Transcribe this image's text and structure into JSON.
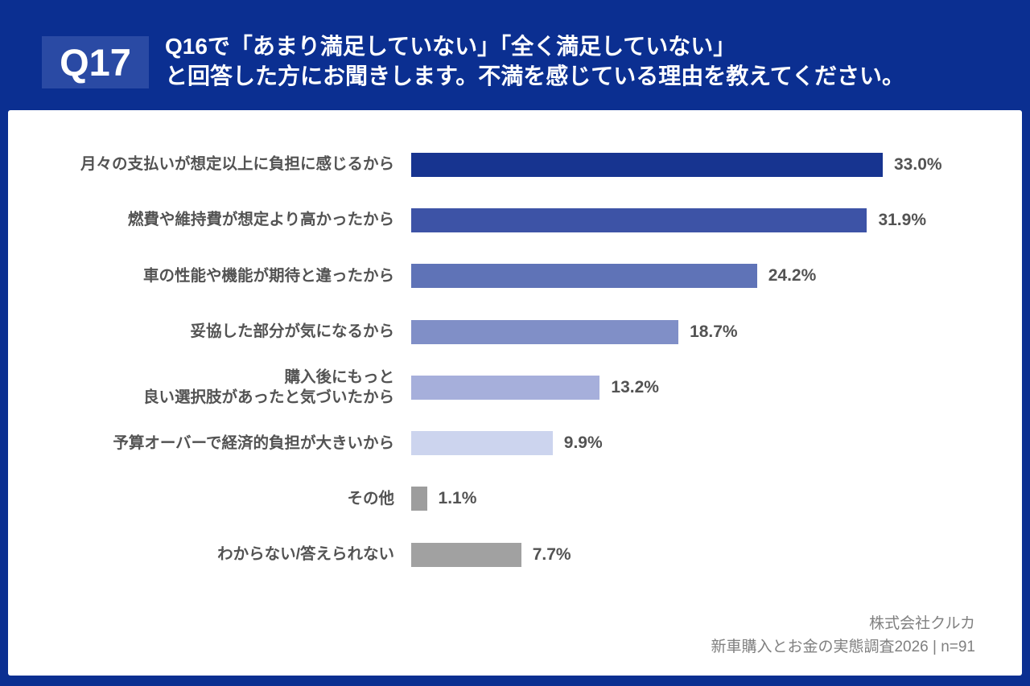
{
  "header": {
    "badge": "Q17",
    "title_line1": "Q16で「あまり満足していない」「全く満足していない」",
    "title_line2": "と回答した方にお聞きします。不満を感じている理由を教えてください。"
  },
  "chart_data": {
    "type": "bar",
    "orientation": "horizontal",
    "categories": [
      "月々の支払いが想定以上に負担に感じるから",
      "燃費や維持費が想定より高かったから",
      "車の性能や機能が期待と違ったから",
      "妥協した部分が気になるから",
      "購入後にもっと\n良い選択肢があったと気づいたから",
      "予算オーバーで経済的負担が大きいから",
      "その他",
      "わからない/答えられない"
    ],
    "values": [
      33.0,
      31.9,
      24.2,
      18.7,
      13.2,
      9.9,
      1.1,
      7.7
    ],
    "value_labels": [
      "33.0%",
      "31.9%",
      "24.2%",
      "18.7%",
      "13.2%",
      "9.9%",
      "1.1%",
      "7.7%"
    ],
    "bar_colors": [
      "#173490",
      "#3d53a6",
      "#5f73b7",
      "#808fc7",
      "#a6afdb",
      "#ccd4ee",
      "#9d9d9d",
      "#a1a1a1"
    ],
    "xlim": [
      0,
      35.2
    ],
    "grid": false,
    "legend": false,
    "title": "",
    "xlabel": "",
    "ylabel": ""
  },
  "footer": {
    "company": "株式会社クルカ",
    "source": "新車購入とお金の実態調査2026 | n=91"
  },
  "colors": {
    "background": "#0b2f91",
    "badge_bg": "#2a4aa4",
    "card_bg": "#ffffff",
    "label_text": "#535353",
    "footer_text": "#808080"
  }
}
